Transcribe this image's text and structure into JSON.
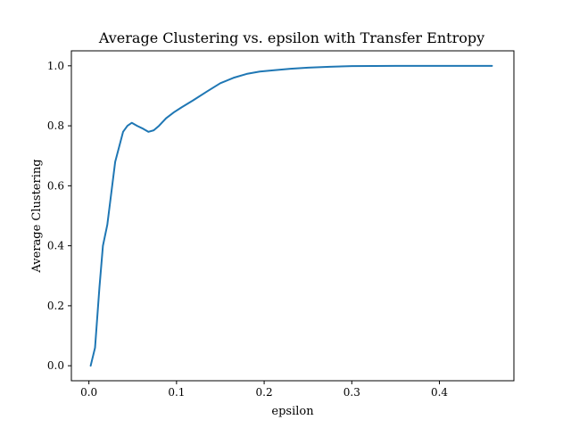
{
  "chart_data": {
    "type": "line",
    "title": "Average Clustering vs. epsilon with Transfer Entropy",
    "xlabel": "epsilon",
    "ylabel": "Average Clustering",
    "xlim": [
      -0.02,
      0.485
    ],
    "ylim": [
      -0.05,
      1.05
    ],
    "x_ticks": [
      0.0,
      0.1,
      0.2,
      0.3,
      0.4
    ],
    "x_tick_labels": [
      "0.0",
      "0.1",
      "0.2",
      "0.3",
      "0.4"
    ],
    "y_ticks": [
      0.0,
      0.2,
      0.4,
      0.6,
      0.8,
      1.0
    ],
    "y_tick_labels": [
      "0.0",
      "0.2",
      "0.4",
      "0.6",
      "0.8",
      "1.0"
    ],
    "grid": false,
    "series": [
      {
        "color": "#1f77b4",
        "x": [
          0.002,
          0.007,
          0.012,
          0.016,
          0.021,
          0.03,
          0.039,
          0.044,
          0.049,
          0.055,
          0.062,
          0.068,
          0.074,
          0.08,
          0.088,
          0.097,
          0.106,
          0.119,
          0.135,
          0.15,
          0.165,
          0.18,
          0.195,
          0.21,
          0.23,
          0.25,
          0.275,
          0.3,
          0.35,
          0.4,
          0.46
        ],
        "y": [
          0.0,
          0.06,
          0.26,
          0.4,
          0.47,
          0.68,
          0.78,
          0.8,
          0.81,
          0.8,
          0.79,
          0.78,
          0.785,
          0.8,
          0.825,
          0.845,
          0.862,
          0.885,
          0.915,
          0.942,
          0.96,
          0.973,
          0.981,
          0.985,
          0.99,
          0.994,
          0.997,
          0.999,
          1.0,
          1.0,
          1.0
        ]
      }
    ]
  }
}
